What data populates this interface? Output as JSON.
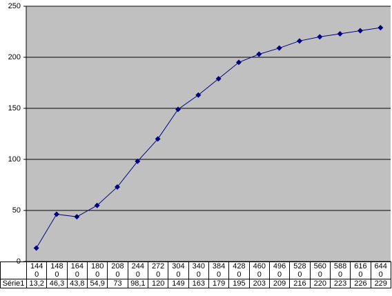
{
  "chart_data": {
    "type": "line",
    "categories": [
      "1440",
      "1480",
      "1640",
      "1800",
      "2080",
      "2440",
      "2720",
      "3040",
      "3400",
      "3840",
      "4280",
      "4600",
      "4960",
      "5280",
      "5600",
      "5880",
      "6160",
      "6440"
    ],
    "series": [
      {
        "name": "Série1",
        "color": "#000080",
        "values": [
          13.2,
          46.3,
          43.8,
          54.9,
          73,
          98.1,
          120,
          149,
          163,
          179,
          195,
          203,
          209,
          216,
          220,
          223,
          226,
          229
        ],
        "value_labels": [
          "13,2",
          "46,3",
          "43,8",
          "54,9",
          "73",
          "98,1",
          "120",
          "149",
          "163",
          "179",
          "195",
          "203",
          "209",
          "216",
          "220",
          "223",
          "226",
          "229"
        ]
      }
    ],
    "ylim": [
      0,
      250
    ],
    "yticks": [
      0,
      50,
      100,
      150,
      200,
      250
    ],
    "grid": true,
    "plot_background": "#c0c0c0"
  }
}
